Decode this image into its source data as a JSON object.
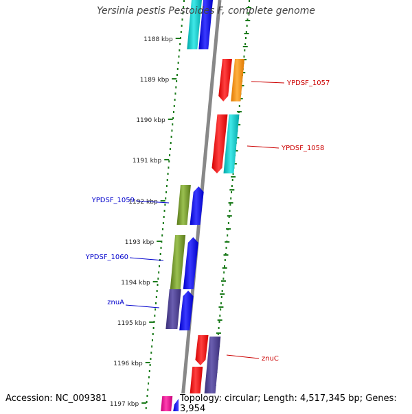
{
  "title": "Yersinia pestis Pestoides F, complete genome",
  "accession": "Accession: NC_009381",
  "topology": "Topology: circular; Length: 4,517,345 bp; Genes: 3,954",
  "colors": {
    "backbone": "#888888",
    "tick": "#1a7a1a",
    "label_forward": "#cc0000",
    "label_reverse": "#0000cc"
  },
  "kbp_labels": [
    "1188 kbp",
    "1189 kbp",
    "1190 kbp",
    "1191 kbp",
    "1192 kbp",
    "1193 kbp",
    "1194 kbp",
    "1195 kbp",
    "1196 kbp",
    "1197 kbp"
  ],
  "gene_labels": [
    {
      "name": "YPDSF_1057",
      "strand": "forward"
    },
    {
      "name": "YPDSF_1058",
      "strand": "forward"
    },
    {
      "name": "YPDSF_1059",
      "strand": "reverse"
    },
    {
      "name": "YPDSF_1060",
      "strand": "reverse"
    },
    {
      "name": "znuA",
      "strand": "reverse"
    },
    {
      "name": "znuC",
      "strand": "forward"
    }
  ]
}
